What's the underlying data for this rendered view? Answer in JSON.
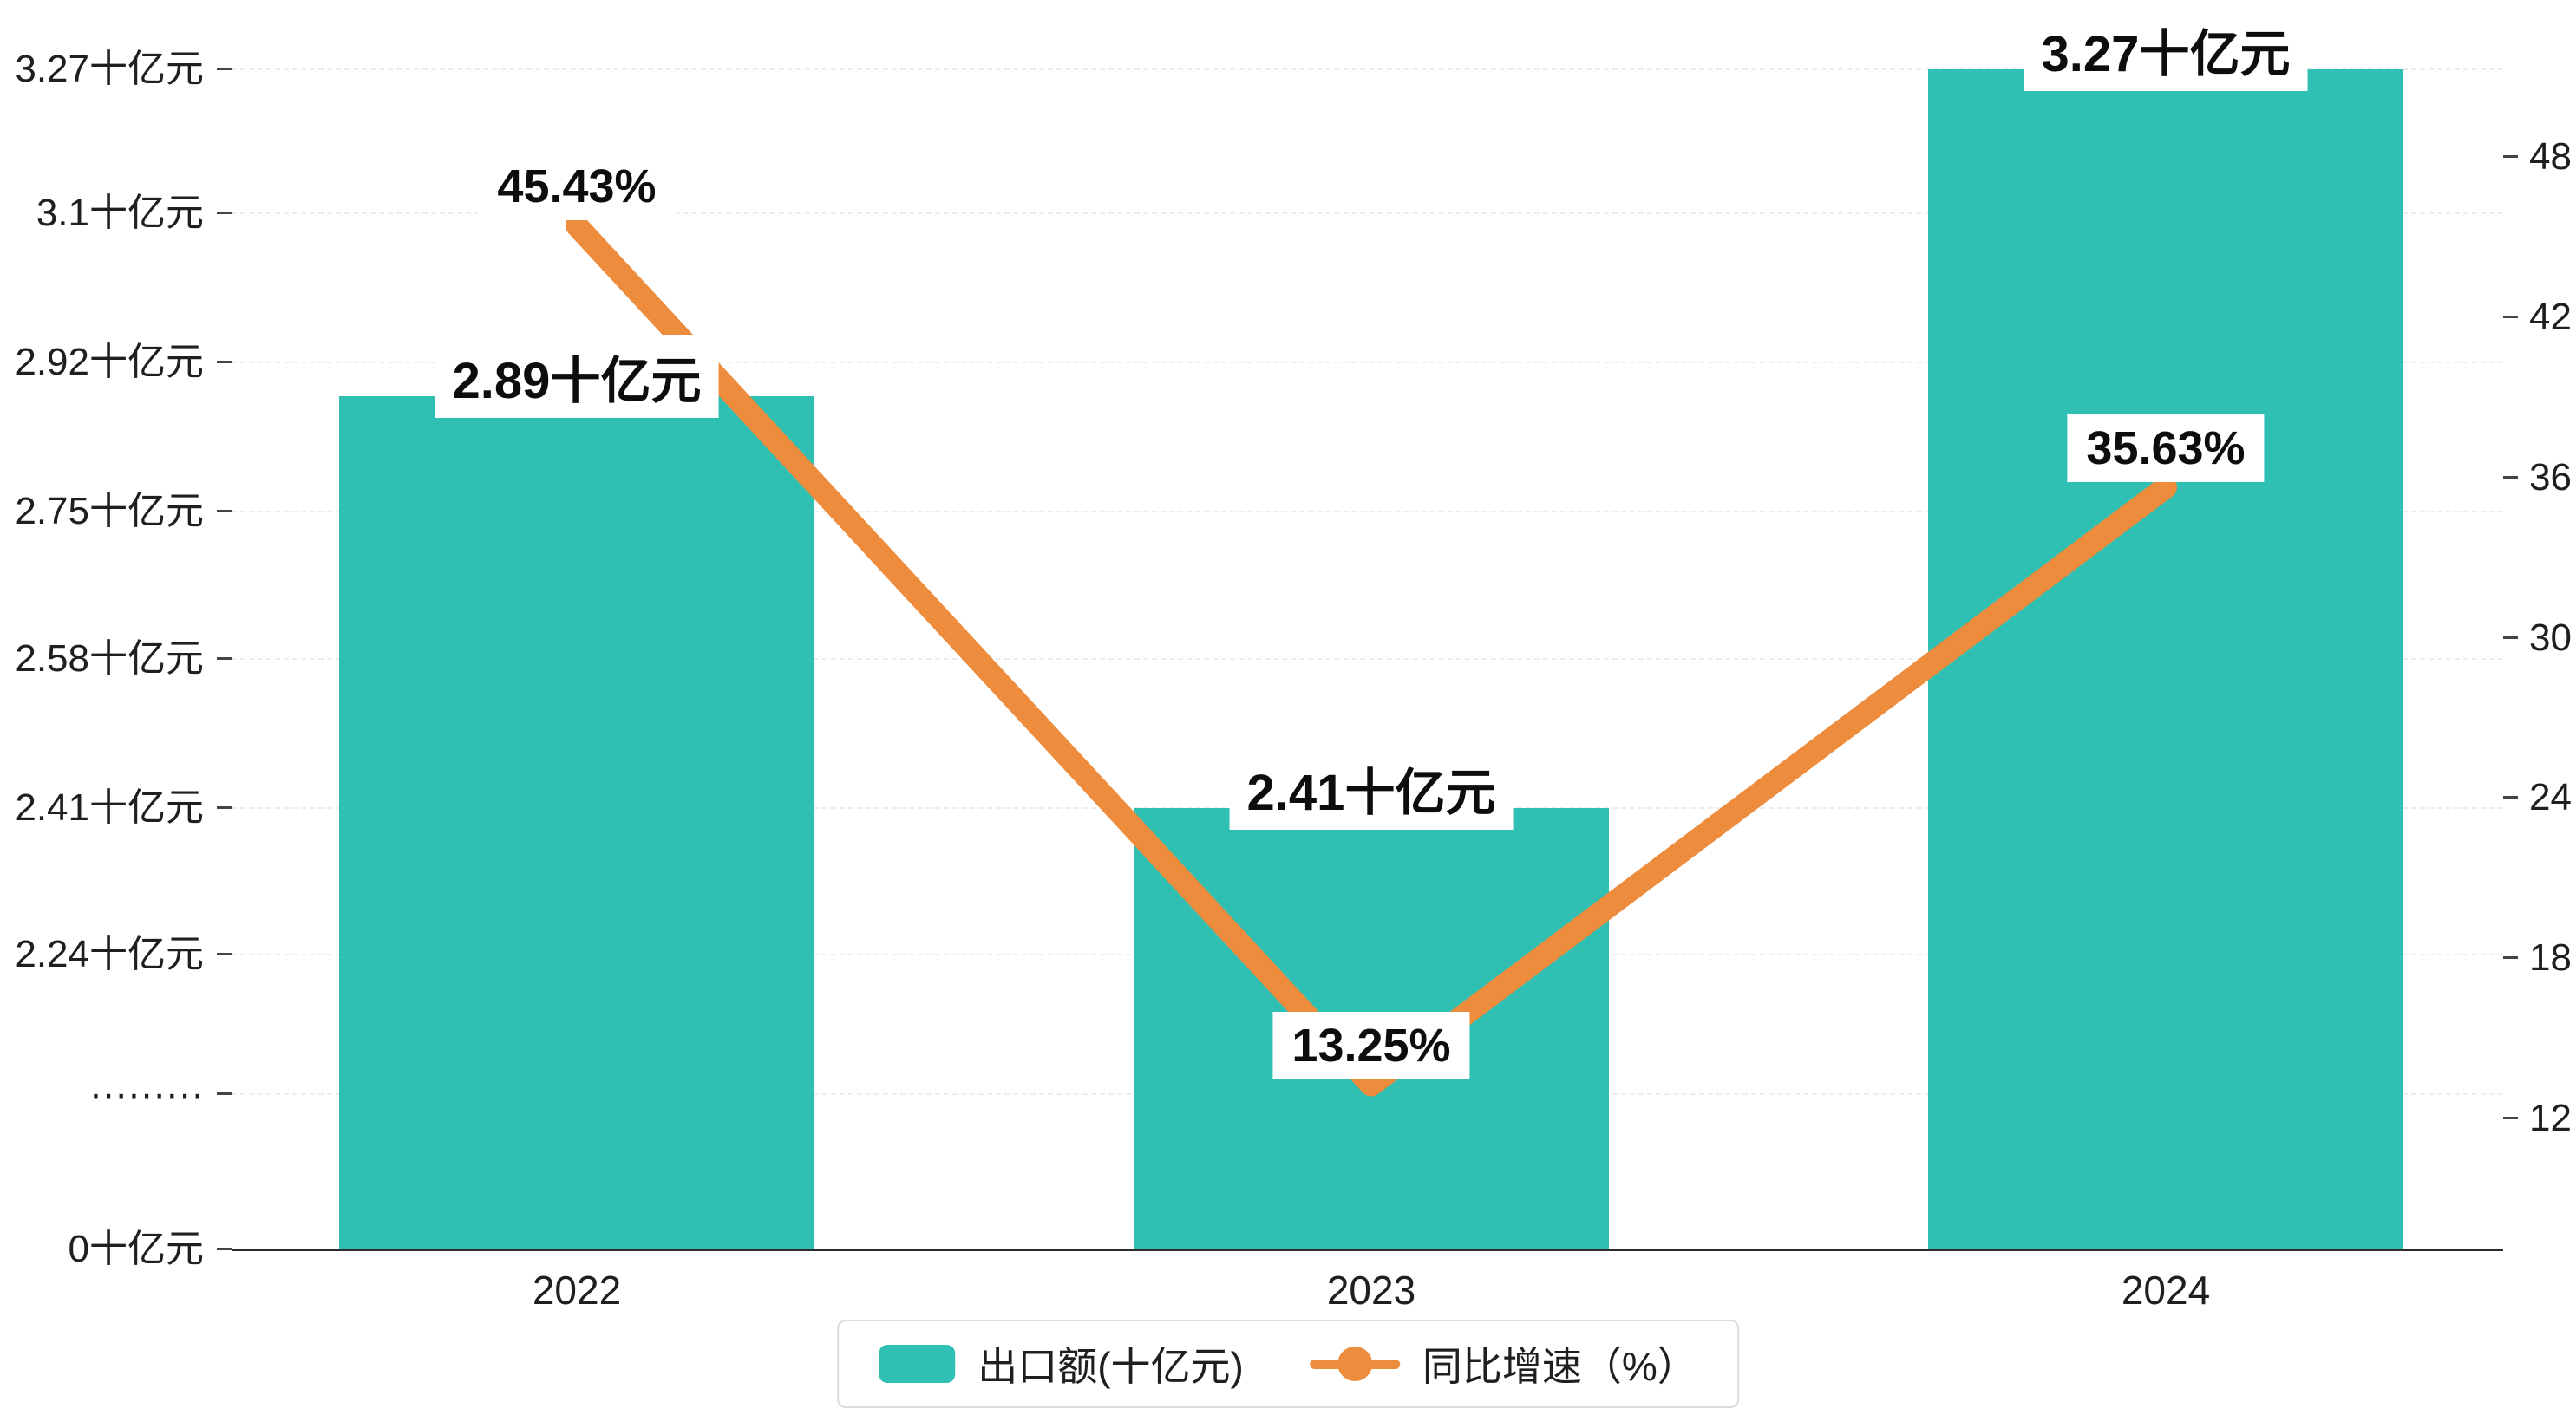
{
  "chart_data": {
    "type": "bar+line",
    "categories": [
      "2022",
      "2023",
      "2024"
    ],
    "series": [
      {
        "name": "出口额(十亿元)",
        "type": "bar",
        "color": "#2fbfb3",
        "values": [
          2.89,
          2.41,
          3.27
        ],
        "labels": [
          "2.89十亿元",
          "2.41十亿元",
          "3.27十亿元"
        ],
        "unit": "十亿元"
      },
      {
        "name": "同比增速（%）",
        "type": "line",
        "color": "#ed8c3c",
        "values": [
          45.43,
          13.25,
          35.63
        ],
        "labels": [
          "45.43%",
          "13.25%",
          "35.63%"
        ],
        "unit": "%"
      }
    ],
    "left_axis": {
      "ticks": [
        "3.27十亿元",
        "3.1十亿元",
        "2.92十亿元",
        "2.75十亿元",
        "2.58十亿元",
        "2.41十亿元",
        "2.24十亿元",
        "·········",
        "0十亿元"
      ],
      "broken_axis": true
    },
    "right_axis": {
      "ticks": [
        48,
        42,
        36,
        30,
        24,
        18,
        12
      ],
      "range": [
        12,
        48
      ]
    },
    "legend": [
      "出口额(十亿元)",
      "同比增速（%）"
    ],
    "grid": "dashed-horizontal",
    "legend_position": "bottom-center",
    "title": ""
  }
}
